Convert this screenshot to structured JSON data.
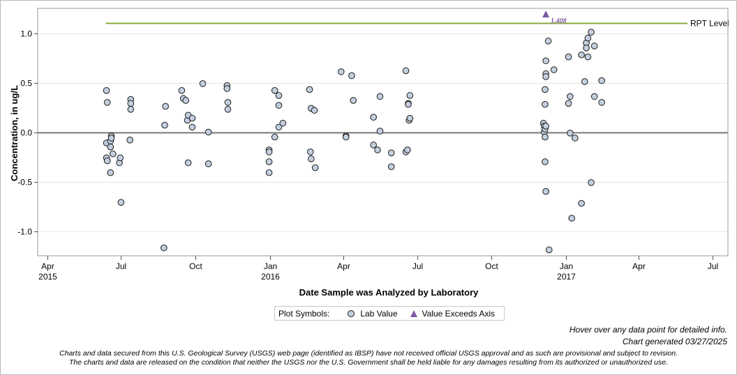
{
  "chart_data": {
    "type": "scatter",
    "xlabel": "Date Sample was Analyzed by Laboratory",
    "ylabel": "Concentration, in ug/L",
    "ylim": [
      -1.25,
      1.25
    ],
    "xlim": [
      "2015-03-20",
      "2017-07-20"
    ],
    "grid": "horizontal",
    "x_ticks": [
      {
        "date": "2015-04-01",
        "label": "Apr",
        "year": "2015"
      },
      {
        "date": "2015-07-01",
        "label": "Jul",
        "year": ""
      },
      {
        "date": "2015-10-01",
        "label": "Oct",
        "year": ""
      },
      {
        "date": "2016-01-01",
        "label": "Jan",
        "year": "2016"
      },
      {
        "date": "2016-04-01",
        "label": "Apr",
        "year": ""
      },
      {
        "date": "2016-07-01",
        "label": "Jul",
        "year": ""
      },
      {
        "date": "2016-10-01",
        "label": "Oct",
        "year": ""
      },
      {
        "date": "2017-01-01",
        "label": "Jan",
        "year": "2017"
      },
      {
        "date": "2017-04-01",
        "label": "Apr",
        "year": ""
      },
      {
        "date": "2017-07-01",
        "label": "Jul",
        "year": ""
      }
    ],
    "y_ticks": [
      {
        "value": 1.0,
        "label": "1.0"
      },
      {
        "value": 0.5,
        "label": "0.5"
      },
      {
        "value": 0.0,
        "label": "0.0"
      },
      {
        "value": -0.5,
        "label": "-0.5"
      },
      {
        "value": -1.0,
        "label": "-1.0"
      }
    ],
    "reference_lines": [
      {
        "label": "RPT Level",
        "value": 1.1,
        "x_start": "2015-06-12",
        "x_end": "2017-05-31",
        "color": "#8aaa3c"
      },
      {
        "label": "",
        "value": 0.0,
        "color": "#777777"
      }
    ],
    "exceeds_axis": [
      {
        "x": "2016-12-07",
        "value": 1.408,
        "label": "1.408"
      }
    ],
    "series": [
      {
        "name": "Lab Value",
        "marker_fill": "#c3cfdf",
        "marker_edge": "#1a1a1a",
        "points": [
          {
            "x": "2015-06-13",
            "y": 0.42
          },
          {
            "x": "2015-06-13",
            "y": -0.11
          },
          {
            "x": "2015-06-13",
            "y": -0.26
          },
          {
            "x": "2015-06-14",
            "y": 0.3
          },
          {
            "x": "2015-06-14",
            "y": -0.29
          },
          {
            "x": "2015-06-18",
            "y": -0.09
          },
          {
            "x": "2015-06-18",
            "y": -0.15
          },
          {
            "x": "2015-06-18",
            "y": -0.41
          },
          {
            "x": "2015-06-19",
            "y": -0.04
          },
          {
            "x": "2015-06-19",
            "y": -0.06
          },
          {
            "x": "2015-06-21",
            "y": -0.22
          },
          {
            "x": "2015-06-29",
            "y": -0.31
          },
          {
            "x": "2015-06-30",
            "y": -0.26
          },
          {
            "x": "2015-07-01",
            "y": -0.71
          },
          {
            "x": "2015-07-12",
            "y": -0.08
          },
          {
            "x": "2015-07-13",
            "y": 0.33
          },
          {
            "x": "2015-07-13",
            "y": 0.29
          },
          {
            "x": "2015-07-13",
            "y": 0.23
          },
          {
            "x": "2015-08-23",
            "y": -1.17
          },
          {
            "x": "2015-08-24",
            "y": 0.07
          },
          {
            "x": "2015-08-25",
            "y": 0.26
          },
          {
            "x": "2015-09-14",
            "y": 0.42
          },
          {
            "x": "2015-09-16",
            "y": 0.34
          },
          {
            "x": "2015-09-19",
            "y": 0.32
          },
          {
            "x": "2015-09-21",
            "y": 0.12
          },
          {
            "x": "2015-09-22",
            "y": 0.17
          },
          {
            "x": "2015-09-22",
            "y": -0.31
          },
          {
            "x": "2015-09-27",
            "y": 0.14
          },
          {
            "x": "2015-09-27",
            "y": 0.05
          },
          {
            "x": "2015-10-10",
            "y": 0.49
          },
          {
            "x": "2015-10-17",
            "y": 0.0
          },
          {
            "x": "2015-10-17",
            "y": -0.32
          },
          {
            "x": "2015-11-09",
            "y": 0.47
          },
          {
            "x": "2015-11-09",
            "y": 0.44
          },
          {
            "x": "2015-11-10",
            "y": 0.3
          },
          {
            "x": "2015-11-10",
            "y": 0.23
          },
          {
            "x": "2015-12-31",
            "y": -0.18
          },
          {
            "x": "2015-12-31",
            "y": -0.2
          },
          {
            "x": "2015-12-31",
            "y": -0.3
          },
          {
            "x": "2015-12-31",
            "y": -0.41
          },
          {
            "x": "2016-01-07",
            "y": 0.42
          },
          {
            "x": "2016-01-07",
            "y": -0.05
          },
          {
            "x": "2016-01-12",
            "y": 0.37
          },
          {
            "x": "2016-01-12",
            "y": 0.27
          },
          {
            "x": "2016-01-12",
            "y": 0.05
          },
          {
            "x": "2016-01-17",
            "y": 0.09
          },
          {
            "x": "2016-02-19",
            "y": 0.43
          },
          {
            "x": "2016-02-20",
            "y": -0.2
          },
          {
            "x": "2016-02-21",
            "y": -0.27
          },
          {
            "x": "2016-02-21",
            "y": 0.24
          },
          {
            "x": "2016-02-25",
            "y": 0.22
          },
          {
            "x": "2016-02-26",
            "y": -0.36
          },
          {
            "x": "2016-03-29",
            "y": 0.61
          },
          {
            "x": "2016-04-04",
            "y": -0.04
          },
          {
            "x": "2016-04-04",
            "y": -0.05
          },
          {
            "x": "2016-04-11",
            "y": 0.57
          },
          {
            "x": "2016-04-13",
            "y": 0.32
          },
          {
            "x": "2016-05-08",
            "y": 0.15
          },
          {
            "x": "2016-05-08",
            "y": -0.13
          },
          {
            "x": "2016-05-13",
            "y": -0.18
          },
          {
            "x": "2016-05-16",
            "y": 0.36
          },
          {
            "x": "2016-05-16",
            "y": 0.01
          },
          {
            "x": "2016-05-30",
            "y": -0.21
          },
          {
            "x": "2016-05-30",
            "y": -0.35
          },
          {
            "x": "2016-06-17",
            "y": 0.62
          },
          {
            "x": "2016-06-17",
            "y": -0.2
          },
          {
            "x": "2016-06-19",
            "y": -0.18
          },
          {
            "x": "2016-06-20",
            "y": 0.29
          },
          {
            "x": "2016-06-20",
            "y": 0.28
          },
          {
            "x": "2016-06-21",
            "y": 0.12
          },
          {
            "x": "2016-06-22",
            "y": 0.14
          },
          {
            "x": "2016-06-22",
            "y": 0.37
          },
          {
            "x": "2016-12-04",
            "y": 0.09
          },
          {
            "x": "2016-12-05",
            "y": 0.06
          },
          {
            "x": "2016-12-05",
            "y": 0.0
          },
          {
            "x": "2016-12-06",
            "y": 0.03
          },
          {
            "x": "2016-12-06",
            "y": 0.28
          },
          {
            "x": "2016-12-06",
            "y": -0.05
          },
          {
            "x": "2016-12-06",
            "y": -0.3
          },
          {
            "x": "2016-12-06",
            "y": 0.43
          },
          {
            "x": "2016-12-07",
            "y": 0.59
          },
          {
            "x": "2016-12-07",
            "y": 0.72
          },
          {
            "x": "2016-12-07",
            "y": 0.56
          },
          {
            "x": "2016-12-07",
            "y": 0.06
          },
          {
            "x": "2016-12-07",
            "y": -0.6
          },
          {
            "x": "2016-12-10",
            "y": 0.92
          },
          {
            "x": "2016-12-11",
            "y": -1.19
          },
          {
            "x": "2016-12-17",
            "y": 0.63
          },
          {
            "x": "2017-01-04",
            "y": 0.76
          },
          {
            "x": "2017-01-04",
            "y": 0.29
          },
          {
            "x": "2017-01-06",
            "y": 0.36
          },
          {
            "x": "2017-01-06",
            "y": -0.01
          },
          {
            "x": "2017-01-08",
            "y": -0.87
          },
          {
            "x": "2017-01-12",
            "y": -0.06
          },
          {
            "x": "2017-01-20",
            "y": 0.78
          },
          {
            "x": "2017-01-20",
            "y": -0.72
          },
          {
            "x": "2017-01-24",
            "y": 0.51
          },
          {
            "x": "2017-01-26",
            "y": 0.9
          },
          {
            "x": "2017-01-26",
            "y": 0.85
          },
          {
            "x": "2017-01-28",
            "y": 0.95
          },
          {
            "x": "2017-01-28",
            "y": 0.76
          },
          {
            "x": "2017-02-01",
            "y": 1.01
          },
          {
            "x": "2017-02-01",
            "y": -0.51
          },
          {
            "x": "2017-02-05",
            "y": 0.87
          },
          {
            "x": "2017-02-05",
            "y": 0.36
          },
          {
            "x": "2017-02-14",
            "y": 0.52
          },
          {
            "x": "2017-02-14",
            "y": 0.3
          }
        ]
      }
    ]
  },
  "legend": {
    "title": "Plot Symbols:",
    "lab_value": "Lab Value",
    "exceeds": "Value Exceeds Axis"
  },
  "notes": {
    "hover": "Hover over any data point for detailed info.",
    "generated": "Chart generated 03/27/2025",
    "disclaimer_1": "Charts and data secured from this U.S. Geological Survey (USGS) web page (identified as IBSP) have not received official USGS approval and as such are provisional and subject to revision.",
    "disclaimer_2": "The charts and data are released on the condition that neither the USGS nor the U.S. Government shall be held liable for any damages resulting from its authorized or unauthorized use."
  },
  "colors": {
    "rpt_line": "#8aaa3c",
    "zero_line": "#777777",
    "grid": "#e6e6e6",
    "marker_fill": "#c3cfdf",
    "exceeds_marker": "#7b5aa6"
  }
}
